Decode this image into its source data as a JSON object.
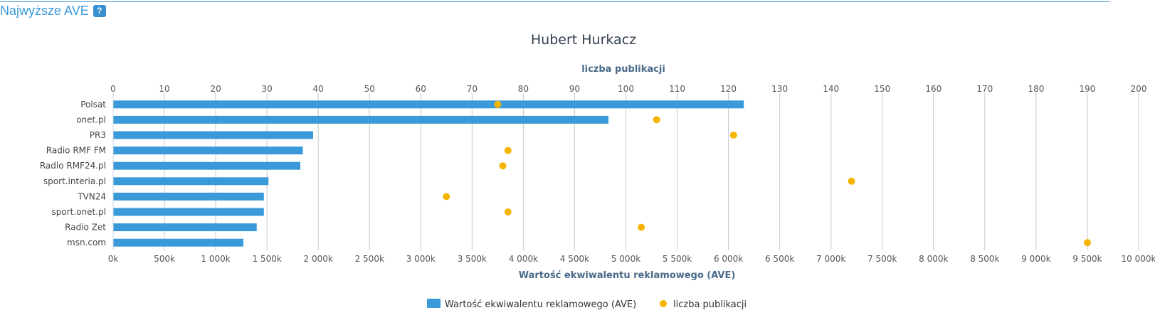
{
  "header": {
    "title": "Najwyższe AVE",
    "help": "?"
  },
  "colors": {
    "bars": "#3a9ad9",
    "dots": "#f5b400",
    "accent": "#3a9ad9"
  },
  "chart_data": {
    "type": "bar",
    "orientation": "horizontal",
    "title": "Hubert Hurkacz",
    "categories": [
      "Polsat",
      "onet.pl",
      "PR3",
      "Radio RMF FM",
      "Radio RMF24.pl",
      "sport.interia.pl",
      "TVN24",
      "sport.onet.pl",
      "Radio Zet",
      "msn.com"
    ],
    "series": [
      {
        "name": "Wartość ekwiwalentu reklamowego (AVE)",
        "type": "bar",
        "axis": "bottom",
        "values": [
          6150,
          4830,
          1950,
          1850,
          1825,
          1515,
          1470,
          1470,
          1400,
          1270
        ]
      },
      {
        "name": "liczba publikacji",
        "type": "scatter",
        "axis": "top",
        "values": [
          75,
          106,
          121,
          77,
          76,
          144,
          65,
          77,
          103,
          190
        ]
      }
    ],
    "bottom_axis": {
      "label": "Wartość ekwiwalentu reklamowego (AVE)",
      "min": 0,
      "max": 10000,
      "ticks": [
        "0k",
        "500k",
        "1 000k",
        "1 500k",
        "2 000k",
        "2 500k",
        "3 000k",
        "3 500k",
        "4 000k",
        "4 500k",
        "5 000k",
        "5 500k",
        "6 000k",
        "6 500k",
        "7 000k",
        "7 500k",
        "8 000k",
        "8 500k",
        "9 000k",
        "9 500k",
        "10 000k"
      ]
    },
    "top_axis": {
      "label": "liczba publikacji",
      "min": 0,
      "max": 200,
      "ticks": [
        "0",
        "10",
        "20",
        "30",
        "40",
        "50",
        "60",
        "70",
        "80",
        "90",
        "100",
        "110",
        "120",
        "130",
        "140",
        "150",
        "160",
        "170",
        "180",
        "190",
        "200"
      ]
    },
    "grid": true,
    "legend_position": "bottom-center"
  }
}
